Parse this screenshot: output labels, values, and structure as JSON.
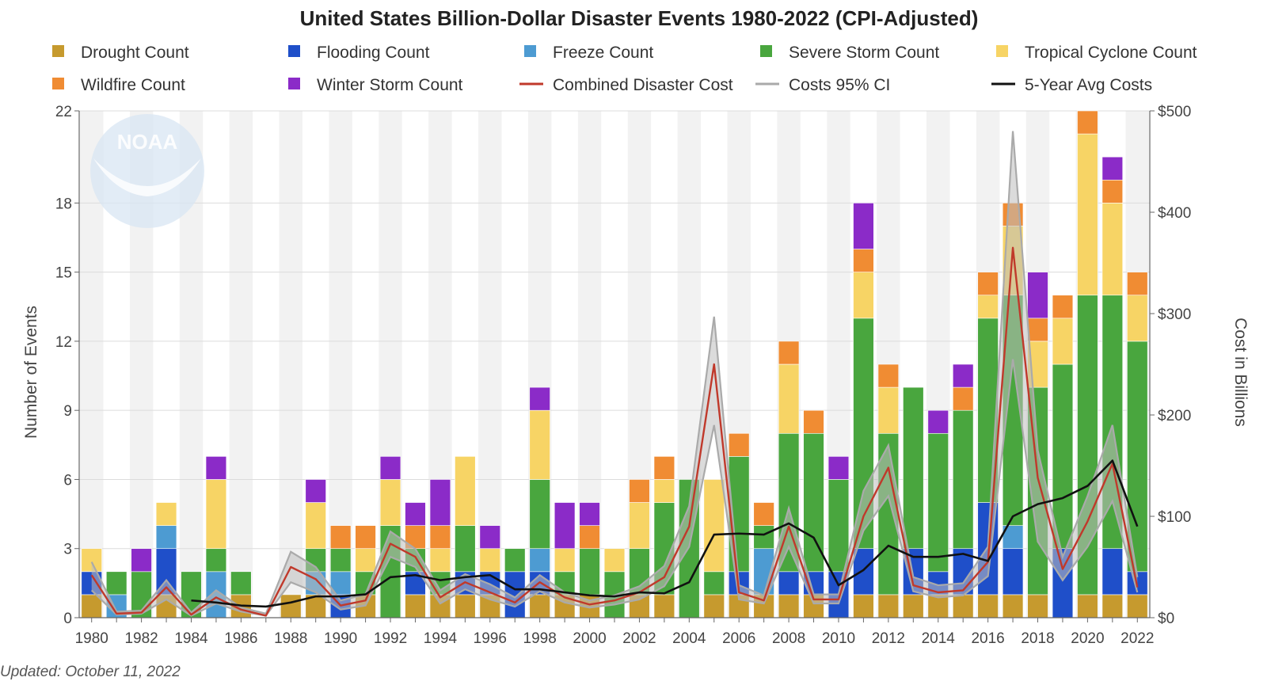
{
  "footer": {
    "updated": "Updated: October 11, 2022"
  },
  "logo": {
    "text": "NOAA"
  },
  "chart_data": {
    "type": "bar",
    "title": "United States Billion-Dollar Disaster Events 1980-2022 (CPI-Adjusted)",
    "ylabel": "Number of Events",
    "y2label": "Cost in Billions",
    "ylim": [
      0,
      22
    ],
    "y2lim": [
      0,
      500
    ],
    "yticks": [
      "0",
      "3",
      "6",
      "9",
      "12",
      "15",
      "18",
      "22"
    ],
    "y2ticks": [
      "$0",
      "$100",
      "$200",
      "$300",
      "$400",
      "$500"
    ],
    "grid": true,
    "legend_position": "top",
    "categories": [
      1980,
      1981,
      1982,
      1983,
      1984,
      1985,
      1986,
      1987,
      1988,
      1989,
      1990,
      1991,
      1992,
      1993,
      1994,
      1995,
      1996,
      1997,
      1998,
      1999,
      2000,
      2001,
      2002,
      2003,
      2004,
      2005,
      2006,
      2007,
      2008,
      2009,
      2010,
      2011,
      2012,
      2013,
      2014,
      2015,
      2016,
      2017,
      2018,
      2019,
      2020,
      2021,
      2022
    ],
    "xtick_labels": [
      "1980",
      "1982",
      "1984",
      "1986",
      "1988",
      "1990",
      "1992",
      "1994",
      "1996",
      "1998",
      "2000",
      "2002",
      "2004",
      "2006",
      "2008",
      "2010",
      "2012",
      "2014",
      "2016",
      "2018",
      "2020",
      "2022"
    ],
    "series": [
      {
        "name": "Drought Count",
        "color": "#c69a2e",
        "values": [
          1,
          0,
          0,
          1,
          0,
          0,
          1,
          0,
          1,
          1,
          0,
          1,
          0,
          1,
          1,
          1,
          1,
          0,
          1,
          1,
          1,
          0,
          1,
          1,
          0,
          1,
          1,
          1,
          1,
          1,
          0,
          1,
          1,
          1,
          1,
          1,
          1,
          1,
          1,
          0,
          1,
          1,
          1
        ]
      },
      {
        "name": "Flooding Count",
        "color": "#1f4fc9",
        "values": [
          1,
          0,
          0,
          2,
          0,
          0,
          0,
          0,
          0,
          0,
          1,
          0,
          0,
          1,
          0,
          1,
          1,
          2,
          1,
          0,
          0,
          0,
          0,
          0,
          0,
          0,
          1,
          0,
          1,
          1,
          2,
          2,
          0,
          2,
          1,
          2,
          4,
          2,
          0,
          3,
          0,
          2,
          1
        ]
      },
      {
        "name": "Freeze Count",
        "color": "#4d9bd2",
        "values": [
          0,
          1,
          0,
          1,
          0,
          2,
          0,
          0,
          0,
          1,
          1,
          0,
          0,
          0,
          0,
          0,
          0,
          0,
          1,
          0,
          0,
          0,
          0,
          0,
          0,
          0,
          0,
          2,
          0,
          0,
          0,
          0,
          0,
          0,
          0,
          0,
          0,
          1,
          0,
          0,
          0,
          0,
          0
        ]
      },
      {
        "name": "Severe Storm Count",
        "color": "#49a63e",
        "values": [
          0,
          1,
          2,
          0,
          2,
          1,
          1,
          0,
          0,
          1,
          1,
          1,
          4,
          1,
          1,
          2,
          0,
          1,
          3,
          1,
          2,
          2,
          2,
          4,
          6,
          1,
          5,
          1,
          6,
          6,
          4,
          10,
          7,
          7,
          6,
          6,
          8,
          10,
          9,
          8,
          13,
          11,
          10
        ]
      },
      {
        "name": "Tropical Cyclone Count",
        "color": "#f7d465",
        "values": [
          1,
          0,
          0,
          1,
          0,
          3,
          0,
          0,
          0,
          2,
          0,
          1,
          2,
          0,
          1,
          3,
          1,
          0,
          3,
          1,
          0,
          1,
          2,
          1,
          0,
          4,
          0,
          0,
          3,
          0,
          0,
          2,
          2,
          0,
          0,
          0,
          1,
          3,
          2,
          2,
          7,
          4,
          2
        ]
      },
      {
        "name": "Wildfire Count",
        "color": "#f08c33",
        "values": [
          0,
          0,
          0,
          0,
          0,
          0,
          0,
          0,
          0,
          0,
          1,
          1,
          0,
          1,
          1,
          0,
          0,
          0,
          0,
          0,
          1,
          0,
          1,
          1,
          0,
          0,
          1,
          1,
          1,
          1,
          0,
          1,
          1,
          0,
          0,
          1,
          1,
          1,
          1,
          1,
          1,
          1,
          1
        ]
      },
      {
        "name": "Winter Storm Count",
        "color": "#8b2bc8",
        "values": [
          0,
          0,
          1,
          0,
          0,
          1,
          0,
          0,
          0,
          1,
          0,
          0,
          1,
          1,
          2,
          0,
          1,
          0,
          1,
          2,
          1,
          0,
          0,
          0,
          0,
          0,
          0,
          0,
          0,
          0,
          1,
          2,
          0,
          0,
          1,
          1,
          0,
          0,
          2,
          0,
          0,
          1,
          0
        ]
      }
    ],
    "lines": [
      {
        "name": "Combined Disaster Cost",
        "color": "#c0392b",
        "values": [
          42,
          4,
          5,
          30,
          3,
          20,
          8,
          2,
          50,
          38,
          12,
          17,
          73,
          60,
          20,
          35,
          25,
          15,
          35,
          20,
          13,
          17,
          25,
          40,
          90,
          250,
          25,
          17,
          90,
          18,
          18,
          100,
          148,
          32,
          25,
          27,
          55,
          365,
          138,
          48,
          95,
          152,
          30
        ]
      },
      {
        "name": "5-Year Avg Costs",
        "color": "#111111",
        "values": [
          null,
          null,
          null,
          null,
          17,
          15,
          12,
          11,
          15,
          21,
          21,
          23,
          40,
          42,
          37,
          40,
          42,
          28,
          28,
          25,
          22,
          21,
          25,
          24,
          35,
          82,
          83,
          82,
          93,
          79,
          32,
          47,
          71,
          60,
          60,
          63,
          56,
          100,
          112,
          118,
          130,
          155,
          90
        ]
      }
    ],
    "ci_band": {
      "name": "Costs 95% CI",
      "color": "#aaaaaa",
      "lower": [
        27,
        3,
        4,
        18,
        2,
        14,
        6,
        2,
        35,
        25,
        8,
        12,
        60,
        50,
        14,
        28,
        18,
        11,
        26,
        15,
        10,
        13,
        18,
        31,
        70,
        190,
        18,
        14,
        70,
        14,
        14,
        86,
        120,
        26,
        20,
        22,
        41,
        255,
        75,
        37,
        70,
        115,
        25
      ],
      "upper": [
        55,
        6,
        7,
        37,
        5,
        27,
        10,
        4,
        65,
        50,
        17,
        23,
        85,
        68,
        27,
        43,
        33,
        20,
        42,
        25,
        17,
        22,
        31,
        51,
        110,
        297,
        32,
        22,
        108,
        23,
        23,
        125,
        170,
        40,
        32,
        34,
        70,
        480,
        165,
        60,
        120,
        190,
        40
      ]
    }
  }
}
